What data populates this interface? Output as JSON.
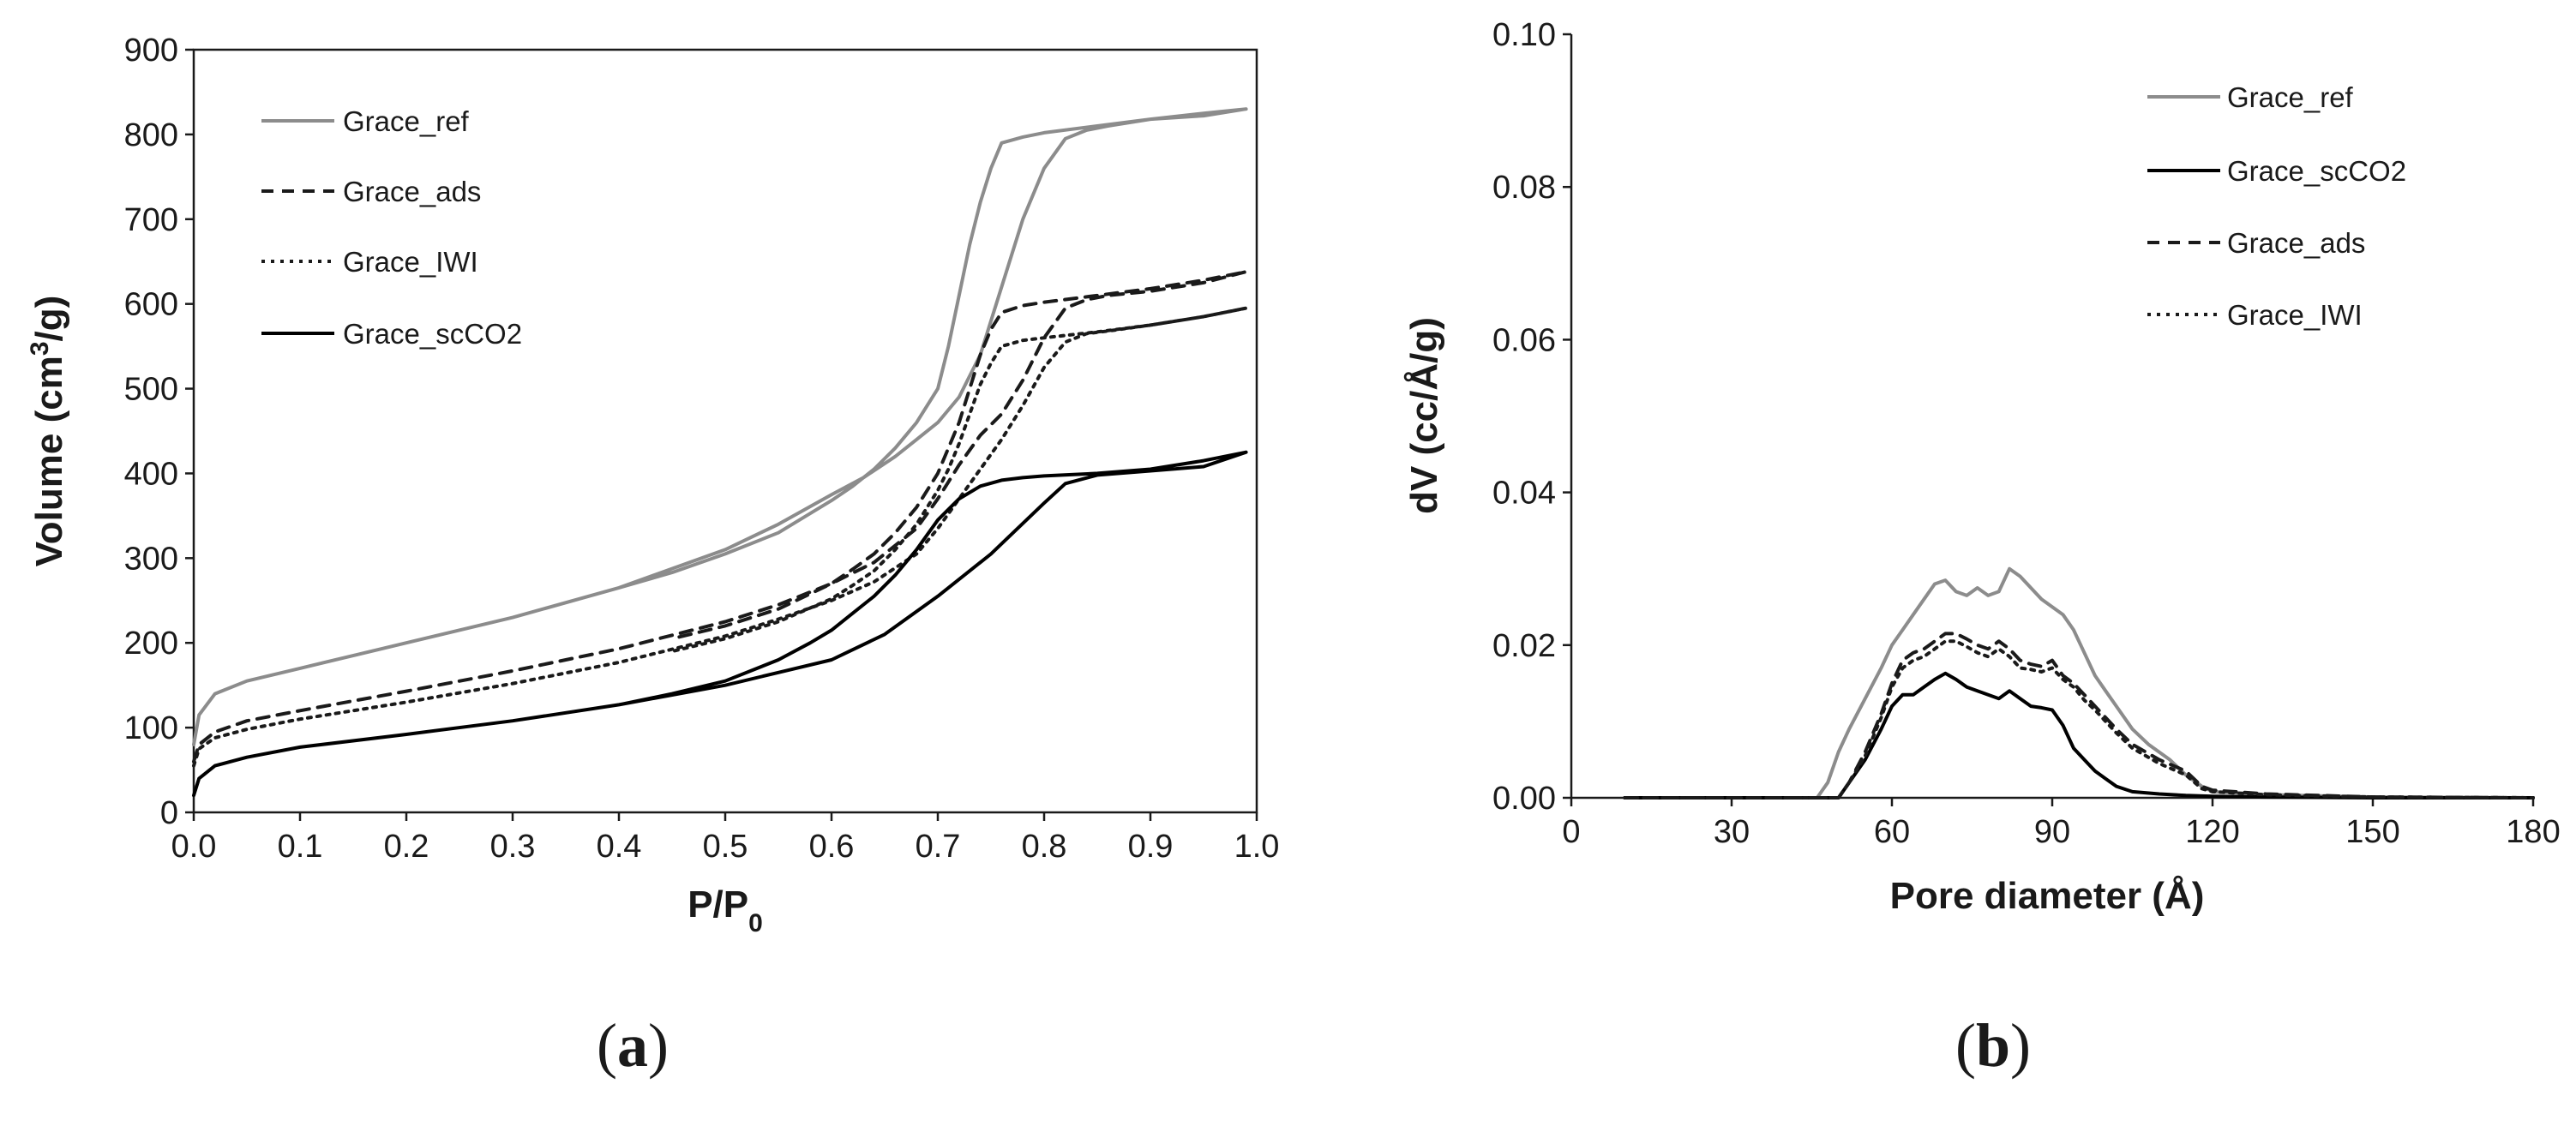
{
  "chart_data": [
    {
      "type": "line",
      "panel_label": "a",
      "xlabel": "P/P",
      "xlabel_sub": "0",
      "ylabel": "Volume (cm",
      "ylabel_sup": "3",
      "ylabel_end": "/g)",
      "xlim": [
        0,
        1
      ],
      "ylim": [
        0,
        900
      ],
      "xticks": [
        "0.0",
        "0.1",
        "0.2",
        "0.3",
        "0.4",
        "0.5",
        "0.6",
        "0.7",
        "0.8",
        "0.9",
        "1.0"
      ],
      "yticks": [
        "0",
        "100",
        "200",
        "300",
        "400",
        "500",
        "600",
        "700",
        "800",
        "900"
      ],
      "grid": false,
      "legend_position": "top-left",
      "legend": [
        "Grace_ref",
        "Grace_ads",
        "Grace_IWI",
        "Grace_scCO2"
      ],
      "series": [
        {
          "name": "Grace_ref",
          "color": "#8c8c8c",
          "dash": "solid",
          "x": [
            0,
            0.005,
            0.02,
            0.05,
            0.1,
            0.2,
            0.3,
            0.4,
            0.5,
            0.55,
            0.6,
            0.63,
            0.66,
            0.68,
            0.7,
            0.72,
            0.74,
            0.76,
            0.78,
            0.8,
            0.82,
            0.84,
            0.86,
            0.9,
            0.95,
            0.99,
            0.95,
            0.9,
            0.85,
            0.8,
            0.78,
            0.76,
            0.75,
            0.74,
            0.73,
            0.72,
            0.71,
            0.7,
            0.68,
            0.66,
            0.64,
            0.62,
            0.6,
            0.55,
            0.5,
            0.45,
            0.4
          ],
          "y": [
            80,
            115,
            140,
            155,
            170,
            200,
            230,
            265,
            310,
            340,
            375,
            395,
            420,
            440,
            460,
            490,
            540,
            620,
            700,
            760,
            795,
            805,
            810,
            818,
            822,
            830,
            825,
            818,
            810,
            802,
            797,
            790,
            760,
            720,
            670,
            610,
            550,
            500,
            460,
            430,
            405,
            385,
            368,
            330,
            305,
            283,
            265
          ]
        },
        {
          "name": "Grace_ads",
          "color": "#1a1a1a",
          "dash": "14,10",
          "x": [
            0,
            0.005,
            0.02,
            0.05,
            0.1,
            0.2,
            0.3,
            0.4,
            0.5,
            0.55,
            0.6,
            0.64,
            0.68,
            0.7,
            0.72,
            0.74,
            0.76,
            0.78,
            0.8,
            0.82,
            0.84,
            0.86,
            0.9,
            0.95,
            0.99,
            0.95,
            0.9,
            0.85,
            0.8,
            0.78,
            0.76,
            0.75,
            0.74,
            0.73,
            0.72,
            0.71,
            0.7,
            0.68,
            0.66,
            0.64,
            0.62,
            0.6,
            0.55,
            0.5,
            0.45
          ],
          "y": [
            60,
            80,
            95,
            108,
            120,
            143,
            167,
            193,
            225,
            245,
            270,
            295,
            335,
            370,
            410,
            445,
            470,
            510,
            560,
            595,
            605,
            610,
            615,
            625,
            638,
            628,
            618,
            610,
            602,
            598,
            590,
            570,
            540,
            500,
            460,
            430,
            400,
            360,
            330,
            305,
            287,
            270,
            240,
            220,
            205
          ]
        },
        {
          "name": "Grace_IWI",
          "color": "#1a1a1a",
          "dash": "4,7",
          "x": [
            0,
            0.005,
            0.02,
            0.05,
            0.1,
            0.2,
            0.3,
            0.4,
            0.5,
            0.55,
            0.6,
            0.64,
            0.68,
            0.7,
            0.72,
            0.74,
            0.76,
            0.78,
            0.8,
            0.82,
            0.84,
            0.86,
            0.9,
            0.95,
            0.99,
            0.95,
            0.9,
            0.85,
            0.8,
            0.78,
            0.76,
            0.75,
            0.74,
            0.73,
            0.72,
            0.71,
            0.7,
            0.68,
            0.66,
            0.64,
            0.62,
            0.6,
            0.55,
            0.5,
            0.45
          ],
          "y": [
            55,
            75,
            88,
            98,
            110,
            130,
            152,
            177,
            208,
            228,
            250,
            272,
            305,
            335,
            370,
            405,
            440,
            480,
            525,
            555,
            565,
            568,
            575,
            585,
            595,
            585,
            575,
            567,
            560,
            557,
            550,
            530,
            505,
            470,
            435,
            405,
            380,
            340,
            310,
            285,
            268,
            252,
            225,
            205,
            190
          ]
        },
        {
          "name": "Grace_scCO2",
          "color": "#000000",
          "dash": "solid",
          "x": [
            0,
            0.005,
            0.02,
            0.05,
            0.1,
            0.2,
            0.3,
            0.4,
            0.5,
            0.55,
            0.6,
            0.65,
            0.7,
            0.75,
            0.8,
            0.82,
            0.85,
            0.9,
            0.95,
            0.99,
            0.95,
            0.9,
            0.85,
            0.8,
            0.78,
            0.76,
            0.74,
            0.72,
            0.7,
            0.68,
            0.66,
            0.64,
            0.62,
            0.6,
            0.58,
            0.55,
            0.5,
            0.45,
            0.4
          ],
          "y": [
            20,
            40,
            55,
            65,
            77,
            92,
            108,
            127,
            150,
            165,
            180,
            210,
            255,
            305,
            365,
            388,
            398,
            403,
            408,
            425,
            415,
            405,
            400,
            397,
            395,
            392,
            385,
            370,
            345,
            310,
            280,
            255,
            235,
            215,
            200,
            180,
            155,
            140,
            127
          ]
        }
      ]
    },
    {
      "type": "line",
      "panel_label": "b",
      "xlabel": "Pore diameter (Å)",
      "ylabel": "dV (cc/Å/g)",
      "xlim": [
        0,
        180
      ],
      "ylim": [
        0,
        0.1
      ],
      "xticks": [
        "0",
        "30",
        "60",
        "90",
        "120",
        "150",
        "180"
      ],
      "yticks": [
        "0.00",
        "0.02",
        "0.04",
        "0.06",
        "0.08",
        "0.10"
      ],
      "grid": false,
      "legend_position": "top-right",
      "legend": [
        "Grace_ref",
        "Grace_scCO2",
        "Grace_ads",
        "Grace_IWI"
      ],
      "series": [
        {
          "name": "Grace_ref",
          "color": "#8c8c8c",
          "dash": "solid",
          "x": [
            10,
            46,
            48,
            50,
            52,
            55,
            58,
            60,
            62,
            64,
            66,
            68,
            70,
            72,
            74,
            76,
            78,
            80,
            82,
            84,
            86,
            88,
            90,
            92,
            94,
            96,
            98,
            100,
            102,
            105,
            108,
            112,
            115,
            118,
            120,
            130,
            150,
            180
          ],
          "y": [
            0,
            0,
            0.002,
            0.006,
            0.009,
            0.013,
            0.017,
            0.02,
            0.022,
            0.024,
            0.026,
            0.028,
            0.0285,
            0.027,
            0.0265,
            0.0275,
            0.0265,
            0.027,
            0.03,
            0.029,
            0.0275,
            0.026,
            0.025,
            0.024,
            0.022,
            0.019,
            0.016,
            0.014,
            0.012,
            0.009,
            0.007,
            0.005,
            0.003,
            0.0015,
            0.0008,
            0.0004,
            0.0001,
            0
          ]
        },
        {
          "name": "Grace_scCO2",
          "color": "#000000",
          "dash": "solid",
          "x": [
            10,
            50,
            52,
            55,
            58,
            60,
            62,
            64,
            66,
            68,
            70,
            72,
            74,
            76,
            78,
            80,
            82,
            84,
            86,
            88,
            90,
            92,
            94,
            96,
            98,
            100,
            102,
            105,
            110,
            115,
            120,
            130,
            150,
            180
          ],
          "y": [
            0,
            0,
            0.002,
            0.005,
            0.009,
            0.012,
            0.0135,
            0.0135,
            0.0145,
            0.0155,
            0.0163,
            0.0155,
            0.0145,
            0.014,
            0.0135,
            0.013,
            0.014,
            0.013,
            0.012,
            0.0118,
            0.0115,
            0.0095,
            0.0065,
            0.005,
            0.0035,
            0.0025,
            0.0015,
            0.0008,
            0.0005,
            0.0003,
            0.0002,
            0.0001,
            0,
            0
          ]
        },
        {
          "name": "Grace_ads",
          "color": "#1a1a1a",
          "dash": "14,10",
          "x": [
            10,
            50,
            52,
            55,
            58,
            60,
            62,
            64,
            66,
            68,
            70,
            72,
            74,
            76,
            78,
            80,
            82,
            84,
            86,
            88,
            90,
            92,
            94,
            96,
            98,
            100,
            102,
            105,
            110,
            115,
            118,
            120,
            130,
            150,
            180
          ],
          "y": [
            0,
            0,
            0.002,
            0.006,
            0.011,
            0.015,
            0.018,
            0.019,
            0.0195,
            0.0205,
            0.0215,
            0.0215,
            0.0208,
            0.02,
            0.0195,
            0.0205,
            0.0195,
            0.018,
            0.0175,
            0.0172,
            0.018,
            0.016,
            0.015,
            0.0135,
            0.012,
            0.0105,
            0.009,
            0.007,
            0.005,
            0.0035,
            0.0015,
            0.001,
            0.0005,
            0.0001,
            0
          ]
        },
        {
          "name": "Grace_IWI",
          "color": "#1a1a1a",
          "dash": "4,7",
          "x": [
            10,
            50,
            52,
            55,
            58,
            60,
            62,
            64,
            66,
            68,
            70,
            72,
            74,
            76,
            78,
            80,
            82,
            84,
            86,
            88,
            90,
            92,
            94,
            96,
            98,
            100,
            102,
            105,
            110,
            115,
            118,
            120,
            130,
            150,
            180
          ],
          "y": [
            0,
            0,
            0.002,
            0.0055,
            0.0105,
            0.0145,
            0.017,
            0.018,
            0.0185,
            0.0195,
            0.0205,
            0.0205,
            0.0198,
            0.019,
            0.0185,
            0.0195,
            0.0185,
            0.017,
            0.0168,
            0.0165,
            0.017,
            0.0155,
            0.0145,
            0.0128,
            0.0115,
            0.01,
            0.0085,
            0.0065,
            0.0045,
            0.003,
            0.0012,
            0.0008,
            0.0004,
            0.0001,
            0
          ]
        }
      ]
    }
  ]
}
